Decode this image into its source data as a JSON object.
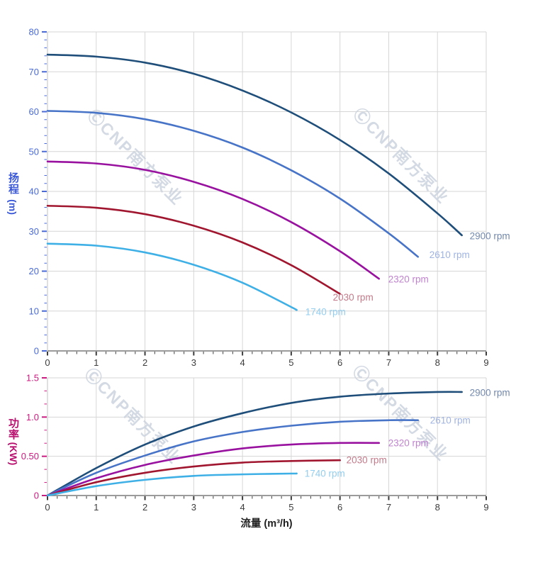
{
  "page": {
    "background": "#FFFFFF"
  },
  "x_axis": {
    "label": "流量 (m³/h)",
    "tick_labels": [
      "0",
      "1",
      "2",
      "3",
      "4",
      "5",
      "6",
      "7",
      "8",
      "9"
    ],
    "tick_values": [
      0,
      1,
      2,
      3,
      4,
      5,
      6,
      7,
      8,
      9
    ]
  },
  "head_chart": {
    "y_label": "扬程",
    "y_unit": "(m)",
    "y_tick_labels": [
      "0",
      "10",
      "20",
      "30",
      "40",
      "50",
      "60",
      "70",
      "80"
    ],
    "y_tick_values": [
      0,
      10,
      20,
      30,
      40,
      50,
      60,
      70,
      80
    ]
  },
  "power_chart": {
    "y_label": "功率",
    "y_unit": "(KW)",
    "y_tick_labels": [
      "0",
      "0.50",
      "1.0",
      "1.5"
    ],
    "y_tick_values": [
      0,
      0.5,
      1,
      1.5
    ]
  },
  "watermark": {
    "text": "ⒸCNP南方泵业",
    "color": "#CDD4DF"
  },
  "colors": {
    "grid": "#D6D6D6",
    "y_axis_line": "#C2C2C2",
    "x_axis_line": "#7A7A7A",
    "x_tick": "#3C3C3C",
    "head_tick": "#4A6AD8",
    "power_tick": "#CC1A80",
    "head_title": "#3A58D8",
    "power_title": "#B8106E",
    "x_title": "#1F1F1F"
  },
  "chart_data": [
    {
      "type": "line",
      "title": "",
      "xlabel": "流量 (m³/h)",
      "ylabel": "扬程 (m)",
      "xlim": [
        0,
        9
      ],
      "ylim": [
        0,
        80
      ],
      "grid": true,
      "legend_position": "end-of-curve",
      "series": [
        {
          "name": "2900 rpm",
          "color": "#1E4E79",
          "label_color": "#7288AC",
          "points": [
            [
              0,
              74.3
            ],
            [
              1,
              73.8
            ],
            [
              2,
              72.3
            ],
            [
              3,
              69.5
            ],
            [
              4,
              65.3
            ],
            [
              5,
              59.8
            ],
            [
              6,
              52.9
            ],
            [
              7,
              44.5
            ],
            [
              8,
              34.5
            ],
            [
              8.5,
              29.0
            ]
          ]
        },
        {
          "name": "2610 rpm",
          "color": "#4874C8",
          "label_color": "#9FB3E2",
          "points": [
            [
              0,
              60.2
            ],
            [
              1,
              59.7
            ],
            [
              2,
              58.1
            ],
            [
              3,
              55.2
            ],
            [
              4,
              51.0
            ],
            [
              5,
              45.3
            ],
            [
              6,
              38.2
            ],
            [
              7,
              29.5
            ],
            [
              7.6,
              23.6
            ]
          ]
        },
        {
          "name": "2320 rpm",
          "color": "#98119F",
          "label_color": "#C083CE",
          "points": [
            [
              0,
              47.5
            ],
            [
              1,
              47.0
            ],
            [
              2,
              45.4
            ],
            [
              3,
              42.4
            ],
            [
              4,
              38.1
            ],
            [
              5,
              32.3
            ],
            [
              6,
              25.0
            ],
            [
              6.8,
              18.1
            ]
          ]
        },
        {
          "name": "2030 rpm",
          "color": "#A1162F",
          "label_color": "#C37A8A",
          "points": [
            [
              0,
              36.4
            ],
            [
              1,
              35.9
            ],
            [
              2,
              34.3
            ],
            [
              3,
              31.4
            ],
            [
              4,
              27.2
            ],
            [
              5,
              21.5
            ],
            [
              6,
              14.3
            ]
          ]
        },
        {
          "name": "1740 rpm",
          "color": "#3FB0E6",
          "label_color": "#93CDEF",
          "points": [
            [
              0,
              26.9
            ],
            [
              1,
              26.4
            ],
            [
              2,
              24.7
            ],
            [
              3,
              21.6
            ],
            [
              4,
              17.1
            ],
            [
              5,
              11.0
            ],
            [
              5.1,
              10.3
            ]
          ]
        }
      ]
    },
    {
      "type": "line",
      "title": "",
      "xlabel": "流量 (m³/h)",
      "ylabel": "功率 (KW)",
      "xlim": [
        0,
        9
      ],
      "ylim": [
        0,
        1.5
      ],
      "grid": true,
      "legend_position": "end-of-curve",
      "series": [
        {
          "name": "2900 rpm",
          "color": "#1E4E79",
          "label_color": "#7288AC",
          "points": [
            [
              0,
              0
            ],
            [
              1,
              0.35
            ],
            [
              2,
              0.65
            ],
            [
              3,
              0.88
            ],
            [
              4,
              1.05
            ],
            [
              5,
              1.18
            ],
            [
              6,
              1.26
            ],
            [
              7,
              1.3
            ],
            [
              8,
              1.32
            ],
            [
              8.5,
              1.32
            ]
          ]
        },
        {
          "name": "2610 rpm",
          "color": "#4874C8",
          "label_color": "#9FB3E2",
          "points": [
            [
              0,
              0
            ],
            [
              1,
              0.29
            ],
            [
              2,
              0.51
            ],
            [
              3,
              0.69
            ],
            [
              4,
              0.81
            ],
            [
              5,
              0.89
            ],
            [
              6,
              0.94
            ],
            [
              7,
              0.96
            ],
            [
              7.6,
              0.96
            ]
          ]
        },
        {
          "name": "2320 rpm",
          "color": "#98119F",
          "label_color": "#C083CE",
          "points": [
            [
              0,
              0
            ],
            [
              1,
              0.22
            ],
            [
              2,
              0.39
            ],
            [
              3,
              0.51
            ],
            [
              4,
              0.6
            ],
            [
              5,
              0.65
            ],
            [
              6,
              0.67
            ],
            [
              6.8,
              0.67
            ]
          ]
        },
        {
          "name": "2030 rpm",
          "color": "#A1162F",
          "label_color": "#C37A8A",
          "points": [
            [
              0,
              0
            ],
            [
              1,
              0.17
            ],
            [
              2,
              0.29
            ],
            [
              3,
              0.37
            ],
            [
              4,
              0.42
            ],
            [
              5,
              0.44
            ],
            [
              6,
              0.45
            ]
          ]
        },
        {
          "name": "1740 rpm",
          "color": "#3FB0E6",
          "label_color": "#93CDEF",
          "points": [
            [
              0,
              0
            ],
            [
              1,
              0.12
            ],
            [
              2,
              0.2
            ],
            [
              3,
              0.25
            ],
            [
              4,
              0.27
            ],
            [
              5,
              0.28
            ],
            [
              5.1,
              0.28
            ]
          ]
        }
      ]
    }
  ]
}
